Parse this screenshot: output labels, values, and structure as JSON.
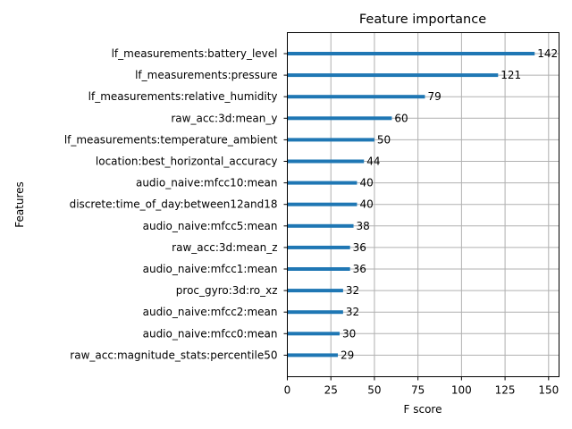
{
  "chart_data": {
    "type": "bar",
    "orientation": "horizontal",
    "title": "Feature importance",
    "xlabel": "F score",
    "ylabel": "Features",
    "xlim": [
      0,
      156
    ],
    "xticks": [
      0,
      25,
      50,
      75,
      100,
      125,
      150
    ],
    "grid": true,
    "bar_color": "#1f77b4",
    "categories": [
      "lf_measurements:battery_level",
      "lf_measurements:pressure",
      "lf_measurements:relative_humidity",
      "raw_acc:3d:mean_y",
      "lf_measurements:temperature_ambient",
      "location:best_horizontal_accuracy",
      "audio_naive:mfcc10:mean",
      "discrete:time_of_day:between12and18",
      "audio_naive:mfcc5:mean",
      "raw_acc:3d:mean_z",
      "audio_naive:mfcc1:mean",
      "proc_gyro:3d:ro_xz",
      "audio_naive:mfcc2:mean",
      "audio_naive:mfcc0:mean",
      "raw_acc:magnitude_stats:percentile50"
    ],
    "values": [
      142,
      121,
      79,
      60,
      50,
      44,
      40,
      40,
      38,
      36,
      36,
      32,
      32,
      30,
      29
    ]
  }
}
